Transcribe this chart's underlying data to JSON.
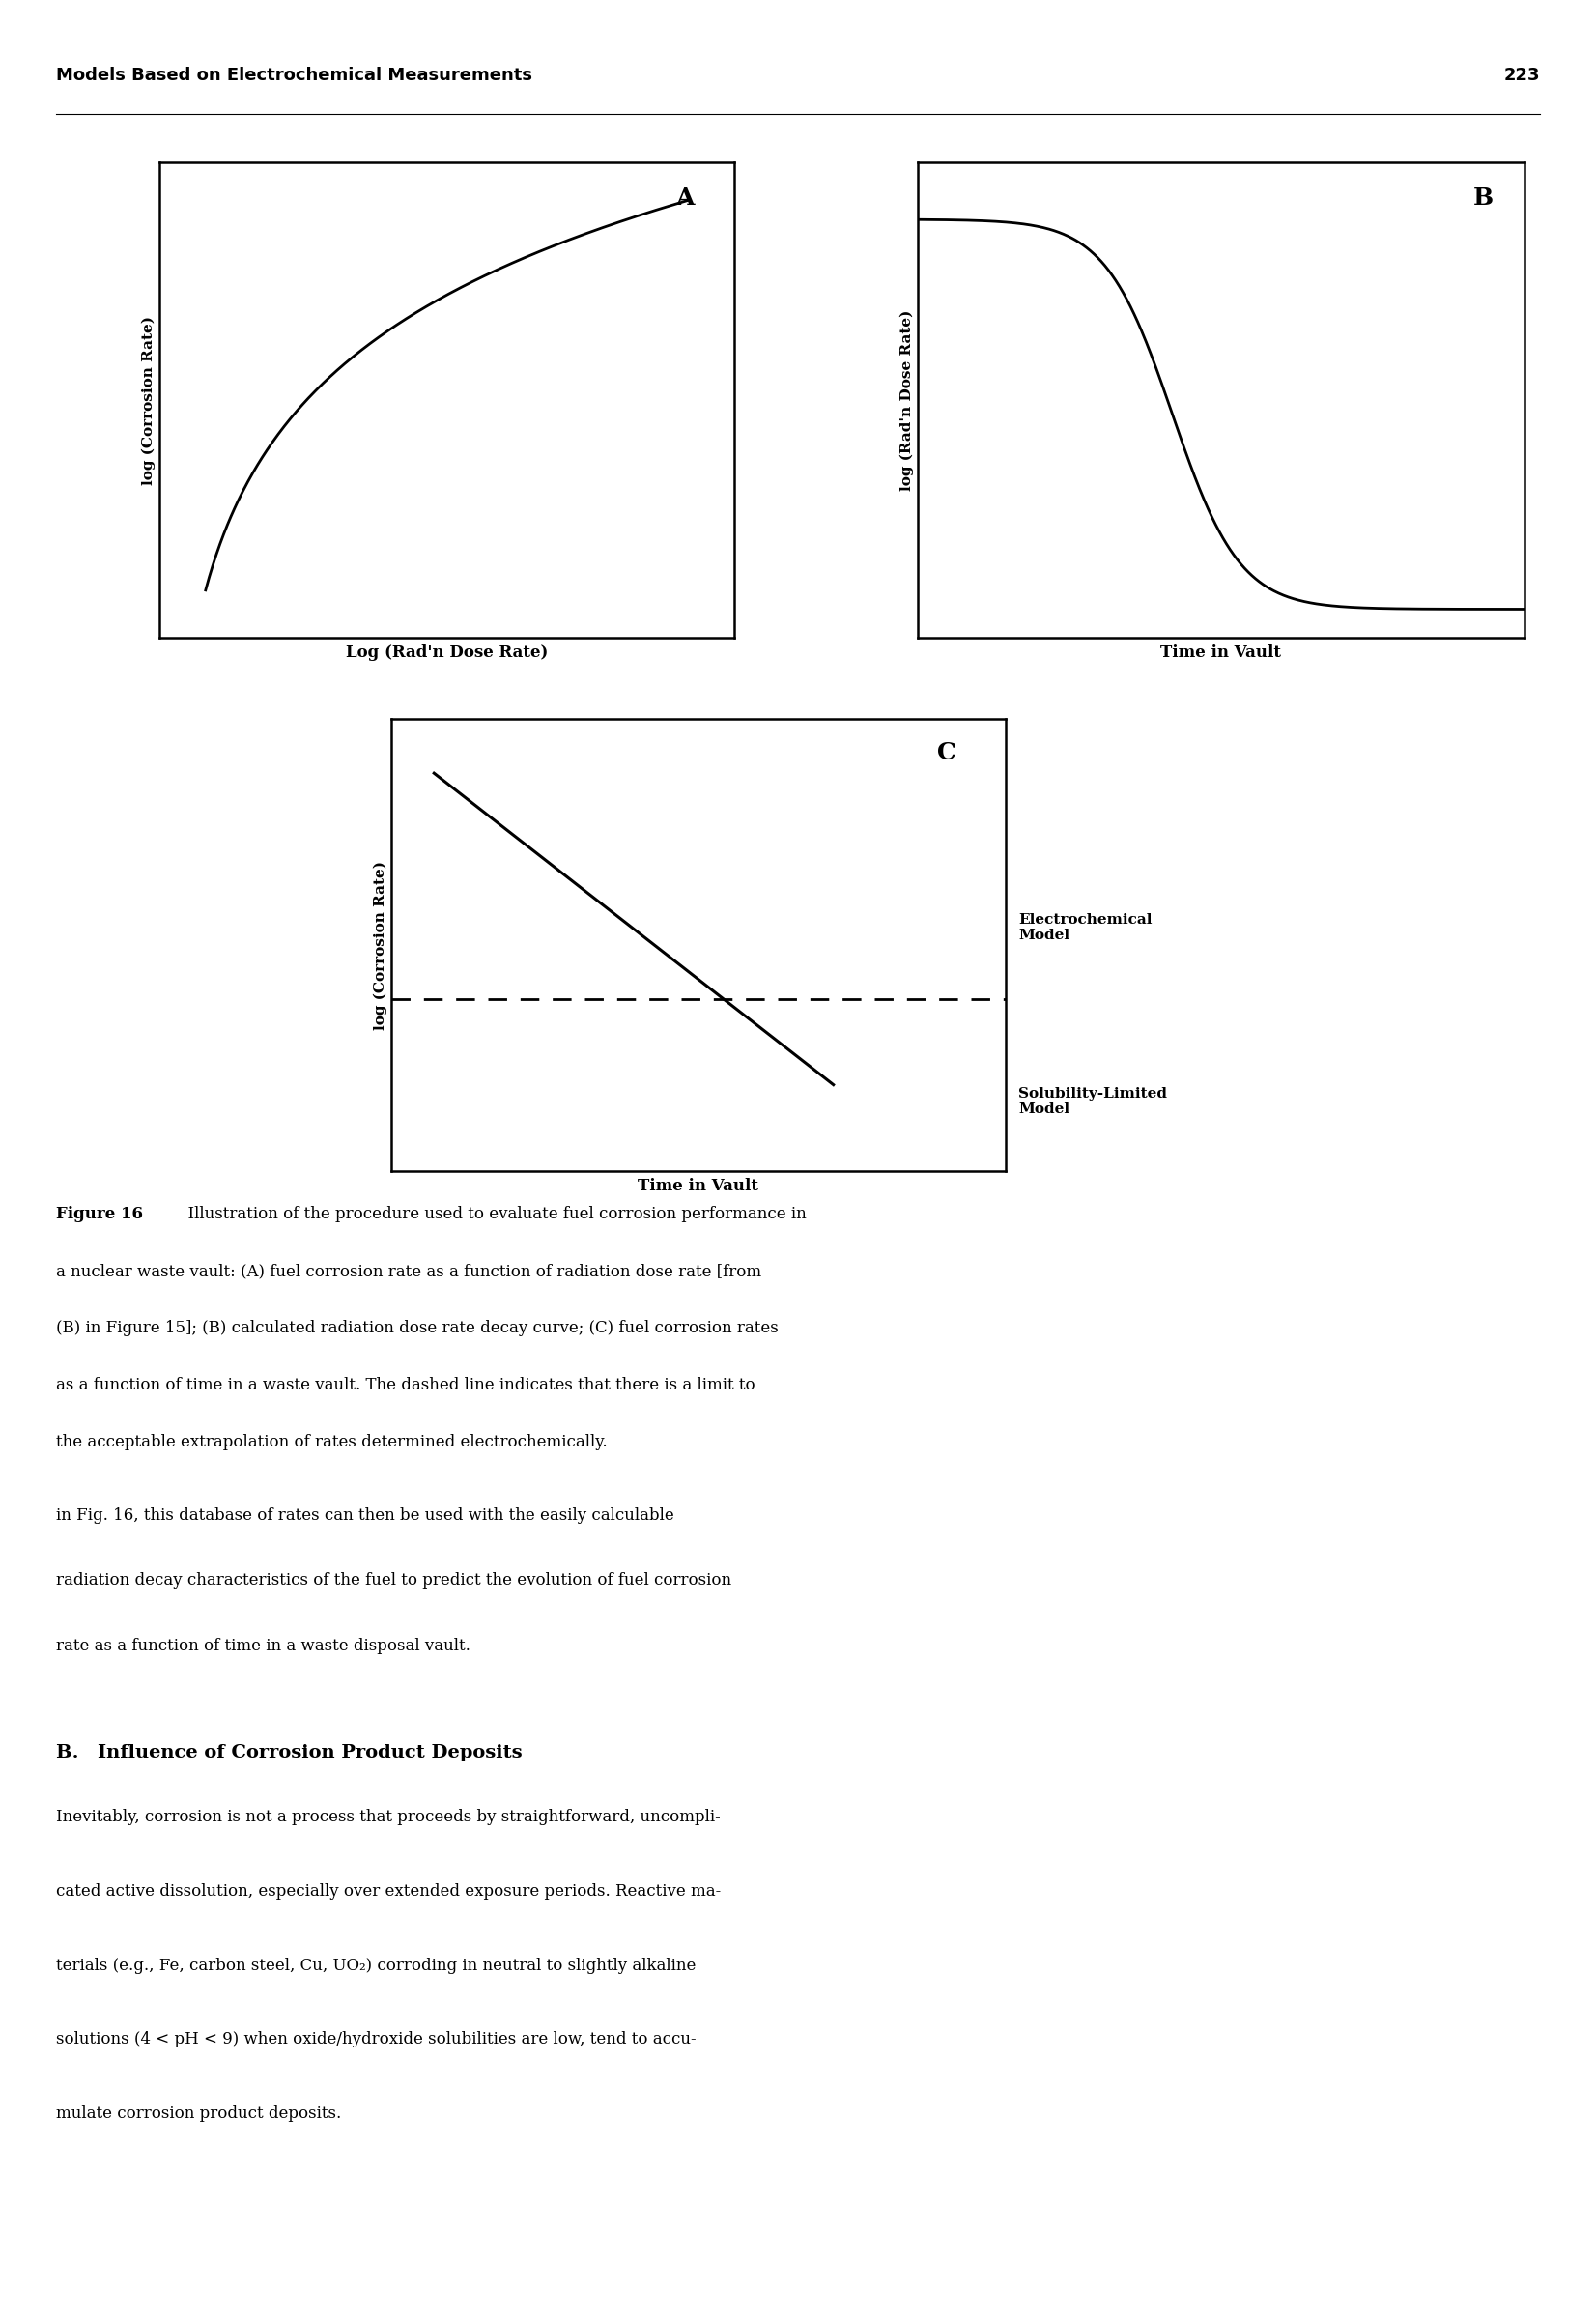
{
  "page_header": "Models Based on Electrochemical Measurements",
  "page_number": "223",
  "header_fontsize": 13,
  "panel_A_label": "A",
  "panel_B_label": "B",
  "panel_C_label": "C",
  "panel_A_ylabel": "log (Corrosion Rate)",
  "panel_A_xlabel": "Log (Rad'n Dose Rate)",
  "panel_B_ylabel": "log (Rad'n Dose Rate)",
  "panel_B_xlabel": "Time in Vault",
  "panel_C_ylabel": "log (Corrosion Rate)",
  "panel_C_xlabel": "Time in Vault",
  "electrochemical_label": "Electrochemical\nModel",
  "solubility_label": "Solubility-Limited\nModel",
  "bg_color": "#ffffff",
  "line_color": "#000000"
}
